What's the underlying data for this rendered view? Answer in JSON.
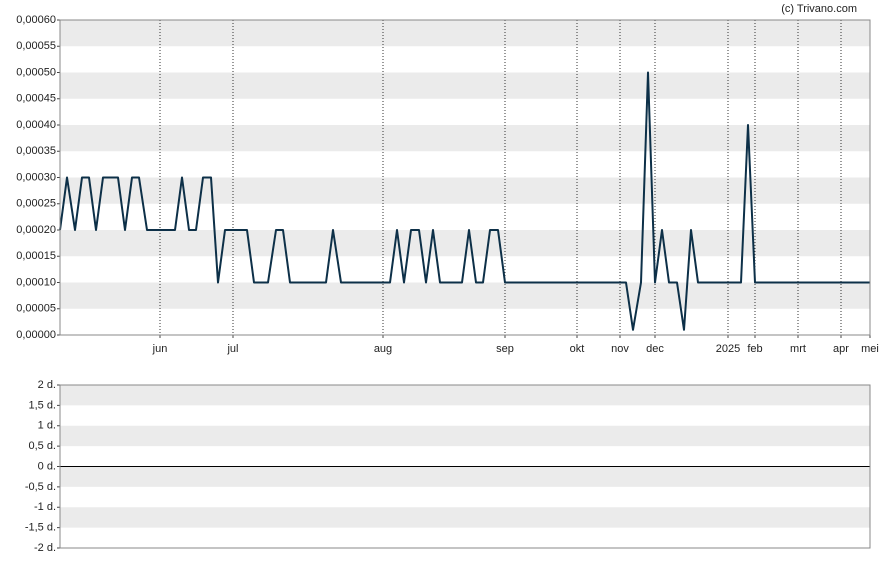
{
  "credit": "(c) Trivano.com",
  "chart_data": [
    {
      "type": "line",
      "color": "#0d3048",
      "x": [
        0,
        7,
        15,
        22,
        29,
        36,
        43,
        58,
        65,
        72,
        79,
        87,
        115,
        122,
        129,
        136,
        143,
        151,
        158,
        165,
        187,
        194,
        208,
        216,
        223,
        230,
        266,
        273,
        281,
        330,
        337,
        344,
        351,
        359,
        366,
        373,
        380,
        402,
        409,
        416,
        423,
        430,
        438,
        445,
        566,
        573,
        581,
        588,
        595,
        602,
        609,
        617,
        624,
        631,
        638,
        681,
        688,
        695,
        810
      ],
      "values": [
        0.0002,
        0.0003,
        0.0002,
        0.0003,
        0.0003,
        0.0002,
        0.0003,
        0.0003,
        0.0002,
        0.0003,
        0.0003,
        0.0002,
        0.0002,
        0.0003,
        0.0002,
        0.0002,
        0.0003,
        0.0003,
        0.0001,
        0.0002,
        0.0002,
        0.0001,
        0.0001,
        0.0002,
        0.0002,
        0.0001,
        0.0001,
        0.0002,
        0.0001,
        0.0001,
        0.0002,
        0.0001,
        0.0002,
        0.0002,
        0.0001,
        0.0002,
        0.0001,
        0.0001,
        0.0002,
        0.0001,
        0.0001,
        0.0002,
        0.0002,
        0.0001,
        0.0001,
        1e-05,
        0.0001,
        0.0005,
        0.0001,
        0.0002,
        0.0001,
        0.0001,
        1e-05,
        0.0002,
        0.0001,
        0.0001,
        0.0004,
        0.0001,
        0.0001
      ],
      "xlim": [
        0,
        810
      ],
      "xticks": [
        {
          "value": 100,
          "label": "jun"
        },
        {
          "value": 173,
          "label": "jul"
        },
        {
          "value": 323,
          "label": "aug"
        },
        {
          "value": 445,
          "label": "sep"
        },
        {
          "value": 517,
          "label": "okt"
        },
        {
          "value": 560,
          "label": "nov"
        },
        {
          "value": 595,
          "label": "dec"
        },
        {
          "value": 668,
          "label": "2025"
        },
        {
          "value": 695,
          "label": "feb"
        },
        {
          "value": 738,
          "label": "mrt"
        },
        {
          "value": 781,
          "label": "apr"
        },
        {
          "value": 810,
          "label": "mei"
        }
      ],
      "ylim": [
        0,
        0.0006
      ],
      "yticks": [
        {
          "value": 0,
          "label": "0,00000"
        },
        {
          "value": 5e-05,
          "label": "0,00005"
        },
        {
          "value": 0.0001,
          "label": "0,00010"
        },
        {
          "value": 0.00015,
          "label": "0,00015"
        },
        {
          "value": 0.0002,
          "label": "0,00020"
        },
        {
          "value": 0.00025,
          "label": "0,00025"
        },
        {
          "value": 0.0003,
          "label": "0,00030"
        },
        {
          "value": 0.00035,
          "label": "0,00035"
        },
        {
          "value": 0.0004,
          "label": "0,00040"
        },
        {
          "value": 0.00045,
          "label": "0,00045"
        },
        {
          "value": 0.0005,
          "label": "0,00050"
        },
        {
          "value": 0.00055,
          "label": "0,00055"
        },
        {
          "value": 0.0006,
          "label": "0,00060"
        }
      ],
      "grid": true
    },
    {
      "type": "bar",
      "ylim": [
        -2,
        2
      ],
      "yticks": [
        {
          "value": -2,
          "label": "-2 d."
        },
        {
          "value": -1.5,
          "label": "-1,5 d."
        },
        {
          "value": -1,
          "label": "-1 d."
        },
        {
          "value": -0.5,
          "label": "-0,5 d."
        },
        {
          "value": 0,
          "label": "0 d."
        },
        {
          "value": 0.5,
          "label": "0,5 d."
        },
        {
          "value": 1,
          "label": "1 d."
        },
        {
          "value": 1.5,
          "label": "1,5 d."
        },
        {
          "value": 2,
          "label": "2 d."
        }
      ],
      "grid": true
    }
  ]
}
